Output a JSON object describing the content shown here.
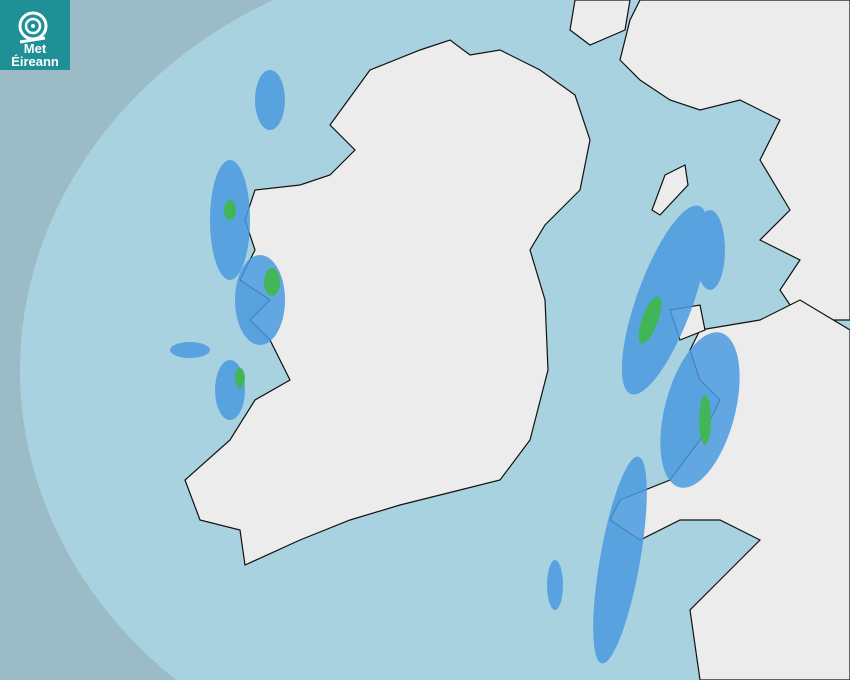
{
  "logo": {
    "line1": "Met",
    "line2": "Éireann",
    "color": "#1f9196"
  },
  "map": {
    "type": "radar",
    "colors": {
      "sea_outside_range": "#9bbcc6",
      "sea_in_range": "#a8d2df",
      "land": "#ececec",
      "rain_light": "#4a9be0",
      "rain_moderate": "#3fb84a"
    }
  }
}
